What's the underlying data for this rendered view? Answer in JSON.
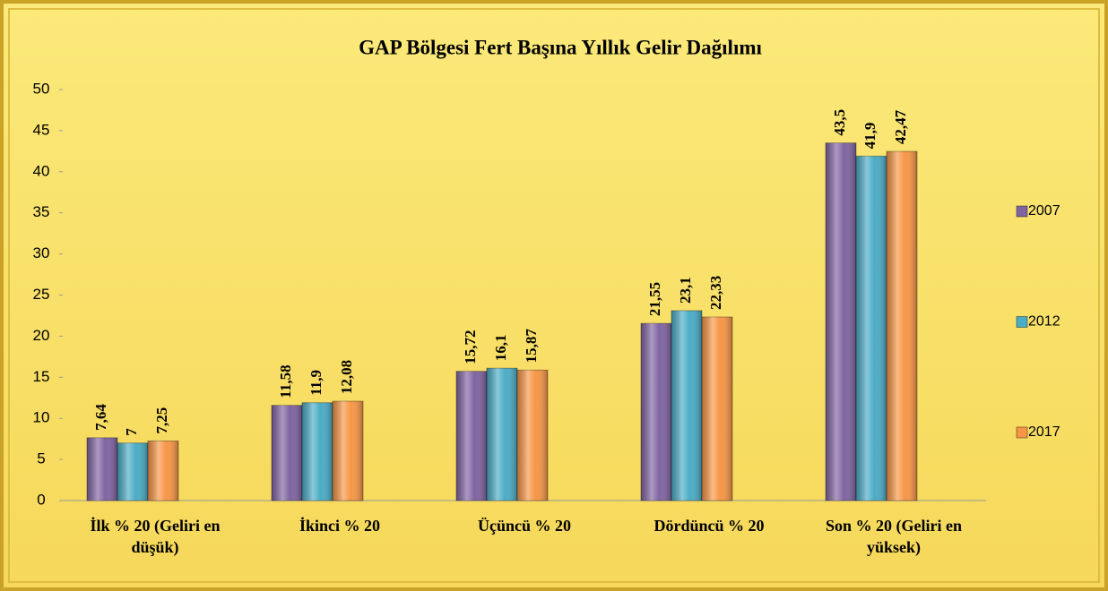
{
  "chart_data": {
    "type": "bar",
    "title": "GAP Bölgesi Fert Başına Yıllık Gelir Dağılımı",
    "categories": [
      "İlk % 20 (Geliri en düşük)",
      "İkinci % 20",
      "Üçüncü % 20",
      "Dördüncü % 20",
      "Son % 20 (Geliri en yüksek)"
    ],
    "series": [
      {
        "name": "2007",
        "color": "#8064a2",
        "values": [
          7.64,
          11.58,
          15.72,
          21.55,
          43.5
        ],
        "value_labels": [
          "7,64",
          "11,58",
          "15,72",
          "21,55",
          "43,5"
        ]
      },
      {
        "name": "2012",
        "color": "#4bacc6",
        "values": [
          7,
          11.9,
          16.1,
          23.1,
          41.9
        ],
        "value_labels": [
          "7",
          "11,9",
          "16,1",
          "23,1",
          "41,9"
        ]
      },
      {
        "name": "2017",
        "color": "#f79646",
        "values": [
          7.25,
          12.08,
          15.87,
          22.33,
          42.47
        ],
        "value_labels": [
          "7,25",
          "12,08",
          "15,87",
          "22,33",
          "42,47"
        ]
      }
    ],
    "ylim": [
      0,
      50
    ],
    "yticks": [
      0,
      5,
      10,
      15,
      20,
      25,
      30,
      35,
      40,
      45,
      50
    ],
    "grid": false,
    "legend": "right"
  }
}
